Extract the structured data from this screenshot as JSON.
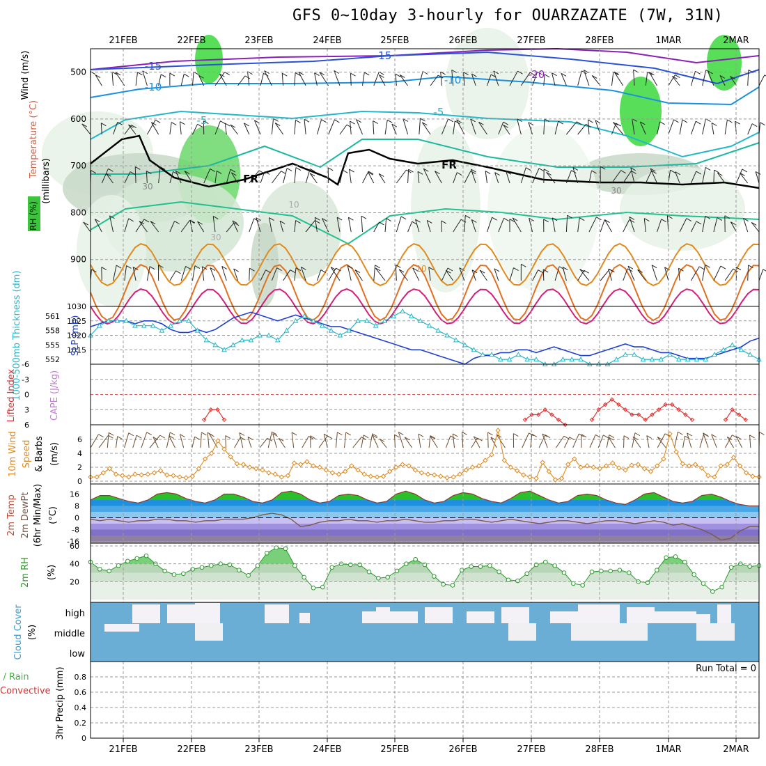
{
  "title": "GFS 0~10day 3-hourly for OUARZAZATE (7W, 31N)",
  "colors": {
    "grid": "#9a9a9a",
    "blue_line": "#1f3fd0",
    "cyan_line": "#25b6c8",
    "orange_line": "#e08a1e",
    "red_line": "#e03030",
    "green_fill": "#3cc43c",
    "sky_blue": "#6aaed6"
  },
  "chart_data": [
    {
      "id": "upper-air",
      "type": "heatmap",
      "title": "Upper air cross-section",
      "xlabel": "",
      "ylabel": "(millibars)",
      "side_labels": [
        "Wind (m/s)",
        "Temperature (°C)",
        "RH (%)"
      ],
      "dates": [
        "21FEB",
        "22FEB",
        "23FEB",
        "24FEB",
        "25FEB",
        "26FEB",
        "27FEB",
        "28FEB",
        "1MAR",
        "2MAR"
      ],
      "y_ticks": [
        500,
        600,
        700,
        800,
        900
      ],
      "ylim": [
        1000,
        450
      ],
      "isotherm_labels": [
        "-15",
        "-10",
        "-5",
        "-20",
        "-15",
        "-10",
        "-5",
        "FR",
        "FR",
        "10",
        "30",
        "30",
        "30",
        "10"
      ]
    },
    {
      "id": "thickness-slp",
      "type": "line",
      "ylabel_left": "1000-500mb Thickness (dm)",
      "ylabel_right": "SLP (mb)",
      "left_ticks": [
        "561",
        "558",
        "555",
        "552"
      ],
      "right_ticks": [
        "1030",
        "1025",
        "1020",
        "1015"
      ],
      "series": [
        {
          "name": "SLP (mb)",
          "color": "#1f3fd0",
          "values": [
            1023,
            1024,
            1025,
            1025,
            1025,
            1024,
            1025,
            1025,
            1024,
            1022,
            1021,
            1021,
            1022,
            1021,
            1022,
            1024,
            1026,
            1027,
            1028,
            1027,
            1026,
            1025,
            1026,
            1027,
            1026,
            1025,
            1024,
            1023,
            1023,
            1022,
            1021,
            1020,
            1019,
            1018,
            1017,
            1016,
            1015,
            1015,
            1014,
            1013,
            1012,
            1011,
            1010,
            1012,
            1013,
            1013,
            1014,
            1014,
            1015,
            1015,
            1014,
            1015,
            1016,
            1015,
            1014,
            1013,
            1013,
            1014,
            1015,
            1016,
            1017,
            1016,
            1016,
            1015,
            1014,
            1014,
            1013,
            1012,
            1012,
            1012,
            1013,
            1014,
            1015,
            1016,
            1018,
            1019
          ]
        },
        {
          "name": "1000-500mb Thickness (dm)",
          "color": "#25b6c8",
          "values": [
            557,
            559,
            560,
            560,
            560,
            559,
            559,
            559,
            558,
            559,
            560,
            560,
            558,
            556,
            555,
            554,
            555,
            556,
            556,
            557,
            557,
            556,
            558,
            560,
            561,
            560,
            559,
            558,
            557,
            558,
            560,
            560,
            559,
            560,
            561,
            562,
            561,
            560,
            559,
            558,
            557,
            556,
            555,
            554,
            553,
            553,
            552,
            552,
            553,
            552,
            552,
            551,
            551,
            552,
            552,
            552,
            551,
            551,
            551,
            552,
            553,
            553,
            552,
            552,
            552,
            553,
            552,
            552,
            552,
            552,
            553,
            554,
            555,
            554,
            553,
            552
          ]
        }
      ]
    },
    {
      "id": "lifted-cape",
      "type": "line",
      "ylabel_left": "Lifted Index",
      "ylabel_right": "CAPE (J/kg)",
      "left_ticks": [
        "-6",
        "-3",
        "0",
        "3",
        "6"
      ],
      "ylim": [
        6,
        -6
      ],
      "series": [
        {
          "name": "Lifted Index",
          "color": "#e03030",
          "values": [
            7,
            7,
            7,
            7,
            7,
            7,
            7,
            7,
            7,
            7,
            7,
            7,
            7,
            7,
            7,
            7,
            7,
            5,
            3,
            3,
            5,
            7,
            7,
            7,
            7,
            7,
            7,
            7,
            7,
            7,
            7,
            7,
            7,
            7,
            7,
            7,
            7,
            7,
            7,
            7,
            7,
            7,
            7,
            7,
            7,
            7,
            7,
            7,
            7,
            7,
            7,
            7,
            7,
            7,
            7,
            7,
            7,
            7,
            7,
            7,
            7,
            7,
            7,
            7,
            7,
            5,
            4,
            4,
            3,
            4,
            5,
            6,
            7,
            7,
            7,
            5,
            3,
            2,
            1,
            2,
            3,
            4,
            4,
            5,
            4,
            3,
            2,
            2,
            3,
            4,
            5,
            7,
            7,
            7,
            7,
            5,
            3,
            4,
            5,
            7,
            7
          ]
        }
      ]
    },
    {
      "id": "wind-10m",
      "type": "line",
      "ylabel": "10m Wind Speed & Barbs (m/s)",
      "y_ticks": [
        "0",
        "2",
        "4",
        "6"
      ],
      "ylim": [
        0,
        8
      ],
      "series": [
        {
          "name": "10m Wind Speed",
          "color": "#e08a1e",
          "values": [
            0.6,
            0.6,
            1.2,
            1.8,
            1.0,
            0.8,
            0.6,
            1.0,
            0.9,
            1.0,
            1.2,
            1.5,
            0.9,
            0.8,
            0.6,
            0.5,
            0.7,
            1.8,
            3.2,
            4.0,
            5.8,
            4.6,
            3.5,
            2.5,
            2.4,
            2.0,
            1.8,
            1.6,
            1.2,
            1.0,
            0.6,
            0.8,
            2.6,
            2.4,
            2.8,
            2.2,
            2.0,
            1.6,
            1.2,
            1.0,
            1.4,
            2.2,
            1.6,
            1.0,
            0.7,
            0.6,
            0.7,
            1.4,
            2.0,
            2.4,
            2.2,
            1.6,
            1.2,
            1.0,
            0.9,
            0.7,
            0.5,
            0.6,
            1.0,
            1.6,
            2.0,
            2.2,
            3.0,
            3.8,
            7.3,
            3.0,
            2.0,
            1.5,
            0.9,
            0.6,
            0.4,
            2.7,
            1.4,
            0.2,
            0.4,
            2.4,
            3.2,
            2.0,
            2.2,
            2.0,
            1.8,
            2.2,
            2.6,
            1.9,
            1.6,
            2.3,
            2.4,
            1.8,
            1.4,
            2.2,
            3.2,
            6.8,
            4.2,
            2.5,
            2.2,
            2.4,
            1.9,
            0.8,
            0.6,
            2.2,
            2.4,
            3.4,
            2.2,
            1.2,
            0.7,
            0.6
          ]
        }
      ]
    },
    {
      "id": "temp-2m",
      "type": "area",
      "ylabel": "2m Temp 2m DewPt (6hr Min/Max) (°C)",
      "y_ticks": [
        "16",
        "8",
        "0",
        "-8",
        "-16"
      ],
      "ylim": [
        -20,
        20
      ],
      "series": [
        {
          "name": "2m Temp",
          "color": "#c0503a",
          "values": [
            12,
            15,
            15,
            13,
            11,
            10,
            12,
            16,
            17,
            16,
            13,
            11,
            10,
            12,
            16,
            16,
            14,
            11,
            10,
            12,
            17,
            18,
            16,
            12,
            10,
            11,
            15,
            16,
            15,
            12,
            10,
            11,
            16,
            18,
            16,
            12,
            10,
            11,
            15,
            17,
            16,
            13,
            11,
            10,
            13,
            17,
            18,
            15,
            12,
            10,
            11,
            15,
            16,
            15,
            12,
            10,
            9,
            12,
            16,
            17,
            14,
            11,
            10,
            11,
            15,
            16,
            14,
            11,
            9,
            8,
            8
          ]
        },
        {
          "name": "2m DewPt",
          "color": "#7a5a4a",
          "values": [
            -1,
            -2,
            -1,
            -2,
            -3,
            -2,
            -2,
            -1,
            -1,
            -2,
            -2,
            -3,
            -2,
            -2,
            -1,
            -1,
            -1,
            0,
            2,
            3,
            2,
            -1,
            -6,
            -5,
            -3,
            -2,
            -2,
            -1,
            -2,
            -2,
            -3,
            -2,
            -2,
            -1,
            -2,
            -3,
            -3,
            -2,
            -2,
            -1,
            -1,
            -2,
            -3,
            -2,
            -1,
            -2,
            -3,
            -4,
            -3,
            -2,
            -2,
            -3,
            -4,
            -3,
            -2,
            -2,
            -3,
            -4,
            -3,
            -2,
            -3,
            -5,
            -4,
            -6,
            -8,
            -11,
            -15,
            -14,
            -9,
            -6,
            -6
          ]
        }
      ]
    },
    {
      "id": "rh-2m",
      "type": "area",
      "ylabel": "2m RH (%)",
      "y_ticks": [
        "60",
        "40",
        "20"
      ],
      "ylim": [
        0,
        60
      ],
      "series": [
        {
          "name": "2m RH",
          "color": "#3cc43c",
          "values": [
            42,
            34,
            32,
            38,
            43,
            46,
            49,
            40,
            32,
            28,
            29,
            34,
            36,
            38,
            40,
            39,
            33,
            27,
            38,
            52,
            58,
            57,
            38,
            25,
            13,
            14,
            36,
            40,
            39,
            39,
            31,
            24,
            25,
            32,
            40,
            45,
            39,
            26,
            17,
            16,
            33,
            37,
            37,
            38,
            31,
            22,
            21,
            29,
            39,
            42,
            38,
            30,
            18,
            16,
            31,
            32,
            32,
            33,
            30,
            20,
            19,
            33,
            47,
            48,
            42,
            28,
            18,
            9,
            14,
            36,
            40,
            37,
            38
          ]
        }
      ]
    },
    {
      "id": "cloud-cover",
      "type": "area",
      "ylabel": "Cloud Cover (%)",
      "levels": [
        "high",
        "middle",
        "low"
      ]
    },
    {
      "id": "precip",
      "type": "bar",
      "ylabel": "3hr Precip (mm)",
      "side_labels": [
        "Total / Rain",
        "Convective"
      ],
      "y_ticks": [
        "0",
        "0.2",
        "0.4",
        "0.6",
        "0.8"
      ],
      "ylim": [
        0,
        1
      ],
      "run_total": "Run Total = 0",
      "values": []
    }
  ]
}
